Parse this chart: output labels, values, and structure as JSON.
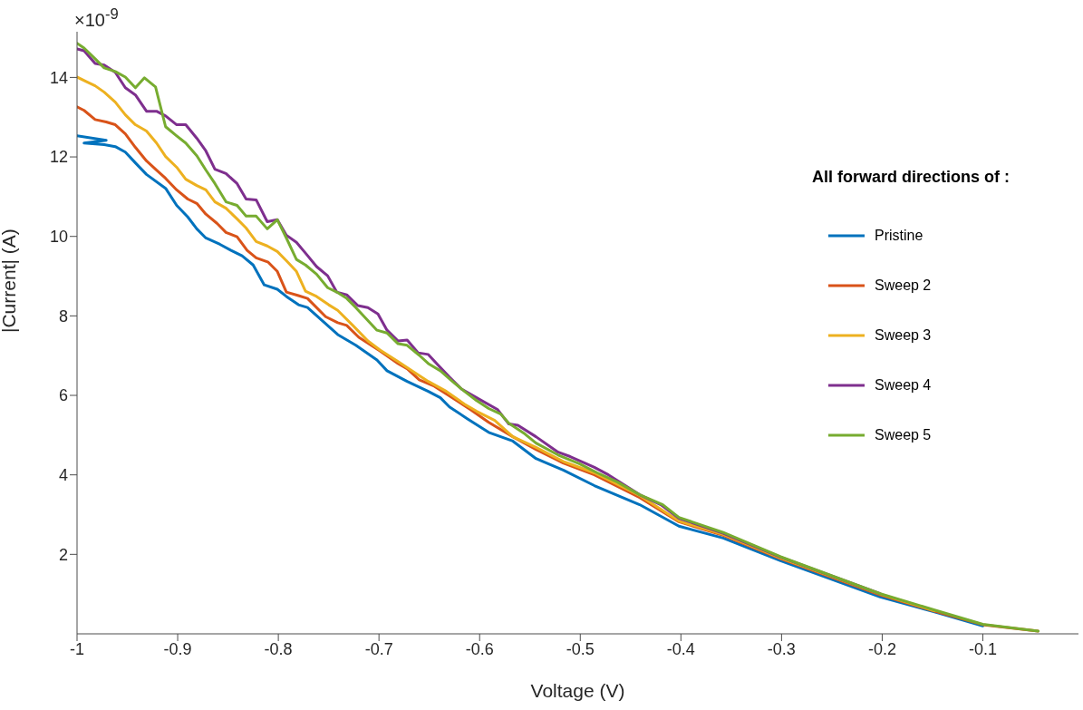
{
  "chart_data": {
    "type": "line",
    "xlabel": "Voltage (V)",
    "ylabel": "|Current| (A)",
    "legend_title": "All forward directions of :",
    "legend": "right",
    "grid": false,
    "marker": "none",
    "line_style": "solid",
    "annotations": [
      "×10$^{-9}$"
    ],
    "xlim": [
      -1,
      -0.005
    ],
    "xticks": [
      -1,
      -0.9,
      -0.8,
      -0.7,
      -0.6,
      -0.5,
      -0.4,
      -0.3,
      -0.2,
      -0.1
    ],
    "ylim": [
      0,
      15.15
    ],
    "yticks": [
      2,
      4,
      6,
      8,
      10,
      12,
      14
    ],
    "series": [
      {
        "name": "Pristine",
        "color": "#0072bd",
        "x": [
          -1,
          -0.971,
          -0.993,
          -0.973,
          -0.962,
          -0.952,
          -0.942,
          -0.931,
          -0.912,
          -0.901,
          -0.89,
          -0.881,
          -0.872,
          -0.858,
          -0.847,
          -0.836,
          -0.825,
          -0.814,
          -0.801,
          -0.792,
          -0.78,
          -0.771,
          -0.741,
          -0.723,
          -0.702,
          -0.692,
          -0.672,
          -0.651,
          -0.639,
          -0.63,
          -0.612,
          -0.591,
          -0.567,
          -0.544,
          -0.517,
          -0.486,
          -0.441,
          -0.402,
          -0.358,
          -0.301,
          -0.202,
          -0.148,
          -0.1
        ],
        "values": [
          12.53,
          12.42,
          12.35,
          12.31,
          12.26,
          12.12,
          11.85,
          11.56,
          11.21,
          10.78,
          10.49,
          10.19,
          9.96,
          9.8,
          9.65,
          9.51,
          9.28,
          8.78,
          8.67,
          8.49,
          8.28,
          8.21,
          7.53,
          7.26,
          6.89,
          6.62,
          6.35,
          6.1,
          5.94,
          5.71,
          5.41,
          5.07,
          4.85,
          4.41,
          4.12,
          3.73,
          3.25,
          2.71,
          2.41,
          1.84,
          0.93,
          0.55,
          0.2
        ]
      },
      {
        "name": "Sweep 2",
        "color": "#d95319",
        "x": [
          -1,
          -0.993,
          -0.982,
          -0.971,
          -0.962,
          -0.952,
          -0.942,
          -0.931,
          -0.921,
          -0.912,
          -0.901,
          -0.89,
          -0.881,
          -0.872,
          -0.861,
          -0.852,
          -0.841,
          -0.831,
          -0.822,
          -0.81,
          -0.801,
          -0.792,
          -0.78,
          -0.771,
          -0.753,
          -0.741,
          -0.732,
          -0.72,
          -0.699,
          -0.681,
          -0.672,
          -0.66,
          -0.645,
          -0.627,
          -0.609,
          -0.591,
          -0.567,
          -0.544,
          -0.517,
          -0.486,
          -0.441,
          -0.402,
          -0.358,
          -0.301,
          -0.202,
          -0.148,
          -0.1,
          -0.045
        ],
        "values": [
          13.26,
          13.17,
          12.94,
          12.88,
          12.81,
          12.58,
          12.24,
          11.9,
          11.67,
          11.46,
          11.17,
          10.94,
          10.83,
          10.56,
          10.33,
          10.1,
          9.99,
          9.65,
          9.46,
          9.35,
          9.12,
          8.6,
          8.51,
          8.44,
          7.98,
          7.83,
          7.76,
          7.46,
          7.12,
          6.8,
          6.67,
          6.39,
          6.23,
          5.94,
          5.64,
          5.32,
          4.96,
          4.64,
          4.3,
          4.0,
          3.43,
          2.82,
          2.48,
          1.89,
          0.98,
          0.57,
          0.23,
          0.07
        ]
      },
      {
        "name": "Sweep 3",
        "color": "#edb120",
        "x": [
          -1,
          -0.991,
          -0.982,
          -0.973,
          -0.962,
          -0.952,
          -0.942,
          -0.931,
          -0.921,
          -0.912,
          -0.901,
          -0.892,
          -0.881,
          -0.872,
          -0.863,
          -0.852,
          -0.841,
          -0.832,
          -0.822,
          -0.811,
          -0.801,
          -0.792,
          -0.782,
          -0.773,
          -0.762,
          -0.75,
          -0.741,
          -0.726,
          -0.711,
          -0.699,
          -0.681,
          -0.663,
          -0.651,
          -0.633,
          -0.615,
          -0.603,
          -0.585,
          -0.567,
          -0.544,
          -0.517,
          -0.486,
          -0.441,
          -0.402,
          -0.358,
          -0.301,
          -0.202,
          -0.148
        ],
        "values": [
          14.01,
          13.9,
          13.79,
          13.63,
          13.38,
          13.06,
          12.81,
          12.65,
          12.35,
          12.01,
          11.74,
          11.44,
          11.28,
          11.17,
          10.87,
          10.71,
          10.44,
          10.21,
          9.87,
          9.76,
          9.62,
          9.39,
          9.12,
          8.62,
          8.49,
          8.28,
          8.14,
          7.76,
          7.37,
          7.14,
          6.85,
          6.55,
          6.35,
          6.1,
          5.78,
          5.6,
          5.37,
          4.96,
          4.69,
          4.34,
          4.05,
          3.48,
          2.84,
          2.5,
          1.91,
          1.0,
          0.58
        ]
      },
      {
        "name": "Sweep 4",
        "color": "#7e2f8e",
        "x": [
          -1,
          -0.993,
          -0.982,
          -0.973,
          -0.962,
          -0.952,
          -0.942,
          -0.931,
          -0.921,
          -0.912,
          -0.901,
          -0.892,
          -0.881,
          -0.872,
          -0.863,
          -0.852,
          -0.841,
          -0.832,
          -0.822,
          -0.811,
          -0.801,
          -0.792,
          -0.782,
          -0.773,
          -0.762,
          -0.751,
          -0.742,
          -0.732,
          -0.721,
          -0.711,
          -0.701,
          -0.692,
          -0.681,
          -0.672,
          -0.661,
          -0.651,
          -0.642,
          -0.63,
          -0.618,
          -0.603,
          -0.582,
          -0.571,
          -0.562,
          -0.544,
          -0.522,
          -0.51,
          -0.486,
          -0.472,
          -0.441,
          -0.42,
          -0.402,
          -0.358,
          -0.301,
          -0.202
        ],
        "values": [
          14.72,
          14.67,
          14.35,
          14.31,
          14.13,
          13.74,
          13.56,
          13.15,
          13.15,
          13.03,
          12.81,
          12.81,
          12.47,
          12.15,
          11.69,
          11.58,
          11.33,
          10.94,
          10.92,
          10.37,
          10.42,
          10.03,
          9.85,
          9.58,
          9.24,
          9.01,
          8.6,
          8.53,
          8.26,
          8.21,
          8.05,
          7.64,
          7.37,
          7.39,
          7.07,
          7.03,
          6.78,
          6.46,
          6.16,
          5.94,
          5.64,
          5.28,
          5.25,
          4.96,
          4.57,
          4.46,
          4.19,
          4.0,
          3.5,
          3.25,
          2.91,
          2.53,
          1.93,
          1.01
        ]
      },
      {
        "name": "Sweep 5",
        "color": "#77ac30",
        "x": [
          -1,
          -0.993,
          -0.982,
          -0.973,
          -0.962,
          -0.952,
          -0.942,
          -0.933,
          -0.922,
          -0.912,
          -0.901,
          -0.892,
          -0.881,
          -0.872,
          -0.863,
          -0.852,
          -0.841,
          -0.832,
          -0.822,
          -0.811,
          -0.801,
          -0.792,
          -0.782,
          -0.773,
          -0.762,
          -0.751,
          -0.742,
          -0.732,
          -0.723,
          -0.702,
          -0.692,
          -0.681,
          -0.672,
          -0.66,
          -0.651,
          -0.639,
          -0.627,
          -0.615,
          -0.603,
          -0.591,
          -0.579,
          -0.571,
          -0.555,
          -0.544,
          -0.522,
          -0.501,
          -0.483,
          -0.463,
          -0.441,
          -0.418,
          -0.402,
          -0.358,
          -0.301,
          -0.202,
          -0.148,
          -0.1,
          -0.045
        ],
        "values": [
          14.86,
          14.74,
          14.47,
          14.24,
          14.15,
          14.01,
          13.74,
          13.99,
          13.76,
          12.76,
          12.53,
          12.35,
          12.03,
          11.67,
          11.33,
          10.87,
          10.78,
          10.51,
          10.51,
          10.19,
          10.42,
          9.96,
          9.42,
          9.28,
          9.05,
          8.71,
          8.6,
          8.44,
          8.21,
          7.64,
          7.57,
          7.3,
          7.26,
          7.01,
          6.8,
          6.62,
          6.35,
          6.1,
          5.87,
          5.67,
          5.53,
          5.3,
          5.03,
          4.8,
          4.5,
          4.28,
          4.05,
          3.82,
          3.5,
          3.25,
          2.93,
          2.55,
          1.94,
          1.01,
          0.6,
          0.24,
          0.07
        ]
      }
    ]
  }
}
